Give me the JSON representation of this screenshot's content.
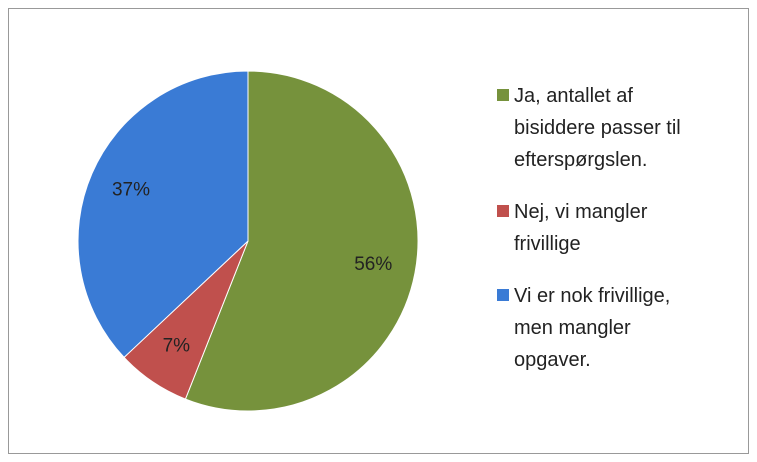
{
  "chart_data": {
    "type": "pie",
    "categories": [
      "Ja, antallet af bisiddere passer til efterspørgslen.",
      "Nej, vi mangler frivillige",
      "Vi er nok frivillige, men mangler opgaver."
    ],
    "values": [
      56,
      7,
      37
    ],
    "value_labels": [
      "56%",
      "7%",
      "37%"
    ],
    "colors": [
      "#76923c",
      "#c0504d",
      "#3a7bd5"
    ],
    "legend": "right"
  }
}
